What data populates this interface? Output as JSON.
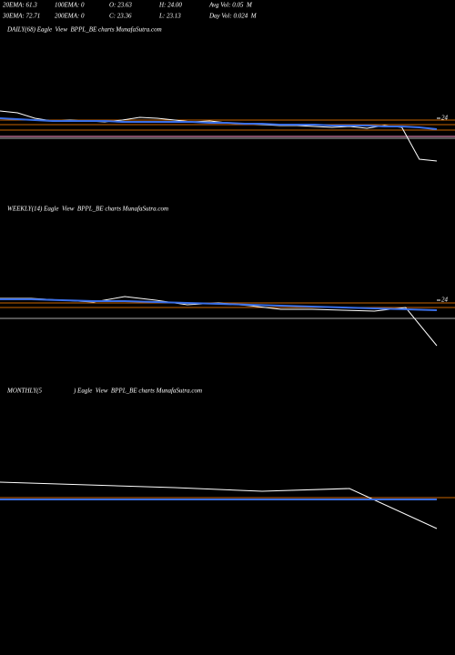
{
  "header": {
    "items": [
      "20EMA: 61.3",
      "100EMA: 0",
      "O: 23.63",
      "H: 24.00",
      "Avg Vol: 0.05  M",
      "30EMA: 72.71",
      "200EMA: 0",
      "C: 23.36",
      "L: 23.13",
      "Day Vol: 0.024  M"
    ]
  },
  "chart_data": [
    {
      "type": "line",
      "title": "DAILY(68) Eagle  View  BPPL_BE charts MunafaSutra.com",
      "ylim": [
        17,
        27
      ],
      "yticks": [
        {
          "value": 24,
          "label": "24"
        }
      ],
      "series": [
        {
          "color": "#ffffff",
          "values": [
            24.8,
            24.6,
            24.0,
            23.7,
            23.8,
            23.7,
            23.6,
            23.8,
            24.1,
            24.0,
            23.8,
            23.6,
            23.7,
            23.5,
            23.4,
            23.3,
            23.2,
            23.2,
            23.1,
            23.0,
            23.1,
            22.9,
            23.2,
            23.0,
            19.5,
            19.3
          ]
        },
        {
          "color": "#3a6fe8",
          "values": [
            24.0,
            23.9,
            23.8,
            23.7,
            23.7,
            23.7,
            23.7,
            23.6,
            23.6,
            23.6,
            23.6,
            23.6,
            23.5,
            23.5,
            23.4,
            23.4,
            23.3,
            23.3,
            23.3,
            23.2,
            23.2,
            23.2,
            23.1,
            23.1,
            23.0,
            22.8
          ]
        }
      ],
      "levels": [
        {
          "value": 23.8,
          "color": "#c86400"
        },
        {
          "value": 23.3,
          "color": "#c86400"
        },
        {
          "value": 22.7,
          "color": "#c86400"
        },
        {
          "value": 22.0,
          "color": "#ff99cc"
        },
        {
          "value": 21.8,
          "color": "#aaaaaa"
        }
      ]
    },
    {
      "type": "line",
      "title": "WEEKLY(14) Eagle  View  BPPL_BE charts MunafaSutra.com",
      "ylim": [
        17,
        27
      ],
      "yticks": [
        {
          "value": 24,
          "label": "24"
        }
      ],
      "series": [
        {
          "color": "#ffffff",
          "values": [
            24.2,
            24.2,
            24.0,
            23.8,
            24.4,
            24.0,
            23.5,
            23.7,
            23.4,
            23.0,
            23.0,
            22.9,
            22.8,
            23.2,
            19.0
          ]
        },
        {
          "color": "#3a6fe8",
          "values": [
            24.1,
            24.1,
            24.0,
            23.9,
            23.9,
            23.8,
            23.7,
            23.6,
            23.5,
            23.4,
            23.3,
            23.2,
            23.1,
            23.0,
            22.9
          ]
        }
      ],
      "levels": [
        {
          "value": 23.7,
          "color": "#c86400"
        },
        {
          "value": 23.2,
          "color": "#c86400"
        },
        {
          "value": 22.0,
          "color": "#aaaaaa"
        }
      ]
    },
    {
      "type": "line",
      "title": "MONTHLY(5                    ) Eagle  View  BPPL_BE charts MunafaSutra.com",
      "ylim": [
        17,
        27
      ],
      "yticks": [],
      "series": [
        {
          "color": "#ffffff",
          "values": [
            24.0,
            23.7,
            23.4,
            23.0,
            23.3,
            18.9
          ]
        },
        {
          "color": "#3a6fe8",
          "values": [
            22.1,
            22.1,
            22.1,
            22.1,
            22.1,
            22.1
          ]
        }
      ],
      "levels": [
        {
          "value": 22.3,
          "color": "#c86400"
        }
      ]
    }
  ]
}
